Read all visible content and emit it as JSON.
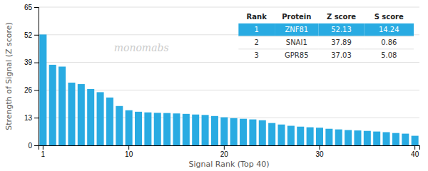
{
  "chart_data": {
    "type": "bar",
    "categories": [
      "1",
      null,
      null,
      null,
      null,
      null,
      null,
      null,
      null,
      "10",
      null,
      null,
      null,
      null,
      null,
      null,
      null,
      null,
      null,
      "20",
      null,
      null,
      null,
      null,
      null,
      null,
      null,
      null,
      null,
      "30",
      null,
      null,
      null,
      null,
      null,
      null,
      null,
      null,
      null,
      "40"
    ],
    "values": [
      52.13,
      37.89,
      37.03,
      29.5,
      28.8,
      26.5,
      25.0,
      22.5,
      18.5,
      16.5,
      15.8,
      15.5,
      15.3,
      15.2,
      15.0,
      14.8,
      14.5,
      14.3,
      13.8,
      13.2,
      12.8,
      12.5,
      12.2,
      11.8,
      10.5,
      9.8,
      9.2,
      8.8,
      8.5,
      8.3,
      7.8,
      7.5,
      7.2,
      7.0,
      6.8,
      6.5,
      6.2,
      5.8,
      5.5,
      4.5
    ],
    "color": "#29ABE2",
    "x_label": "Signal Rank (Top 40)",
    "y_label": "Strength of Signal (Z score)",
    "ylim": [
      0,
      65
    ],
    "yticks": [
      0,
      13,
      26,
      39,
      52,
      65
    ],
    "grid": true,
    "annotations": [
      {
        "text": "monomabs"
      }
    ],
    "table": {
      "columns": [
        "Rank",
        "Protein",
        "Z score",
        "S score"
      ],
      "rows": [
        [
          "1",
          "ZNF81",
          "52.13",
          "14.24"
        ],
        [
          "2",
          "SNAI1",
          "37.89",
          "0.86"
        ],
        [
          "3",
          "GPR85",
          "37.03",
          "5.08"
        ]
      ]
    }
  }
}
